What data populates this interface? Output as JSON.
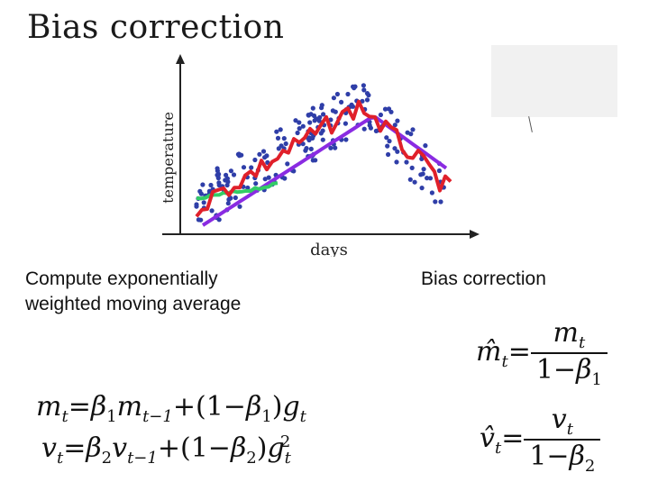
{
  "title": "Bias correction",
  "chart": {
    "xlabel": "days",
    "ylabel": "temperature",
    "colors": {
      "points": "#2f3ea8",
      "red": "#e0202a",
      "purple": "#8a2be2",
      "green": "#33cc66"
    }
  },
  "left_text": {
    "line1": "Compute exponentially",
    "line2": "weighted moving average"
  },
  "right_text": "Bias correction",
  "equations": {
    "m_lhs": "m",
    "v_lhs": "v",
    "beta": "β",
    "m_hat": "m̂",
    "v_hat": "v̂",
    "g": "g",
    "one": "1"
  }
}
